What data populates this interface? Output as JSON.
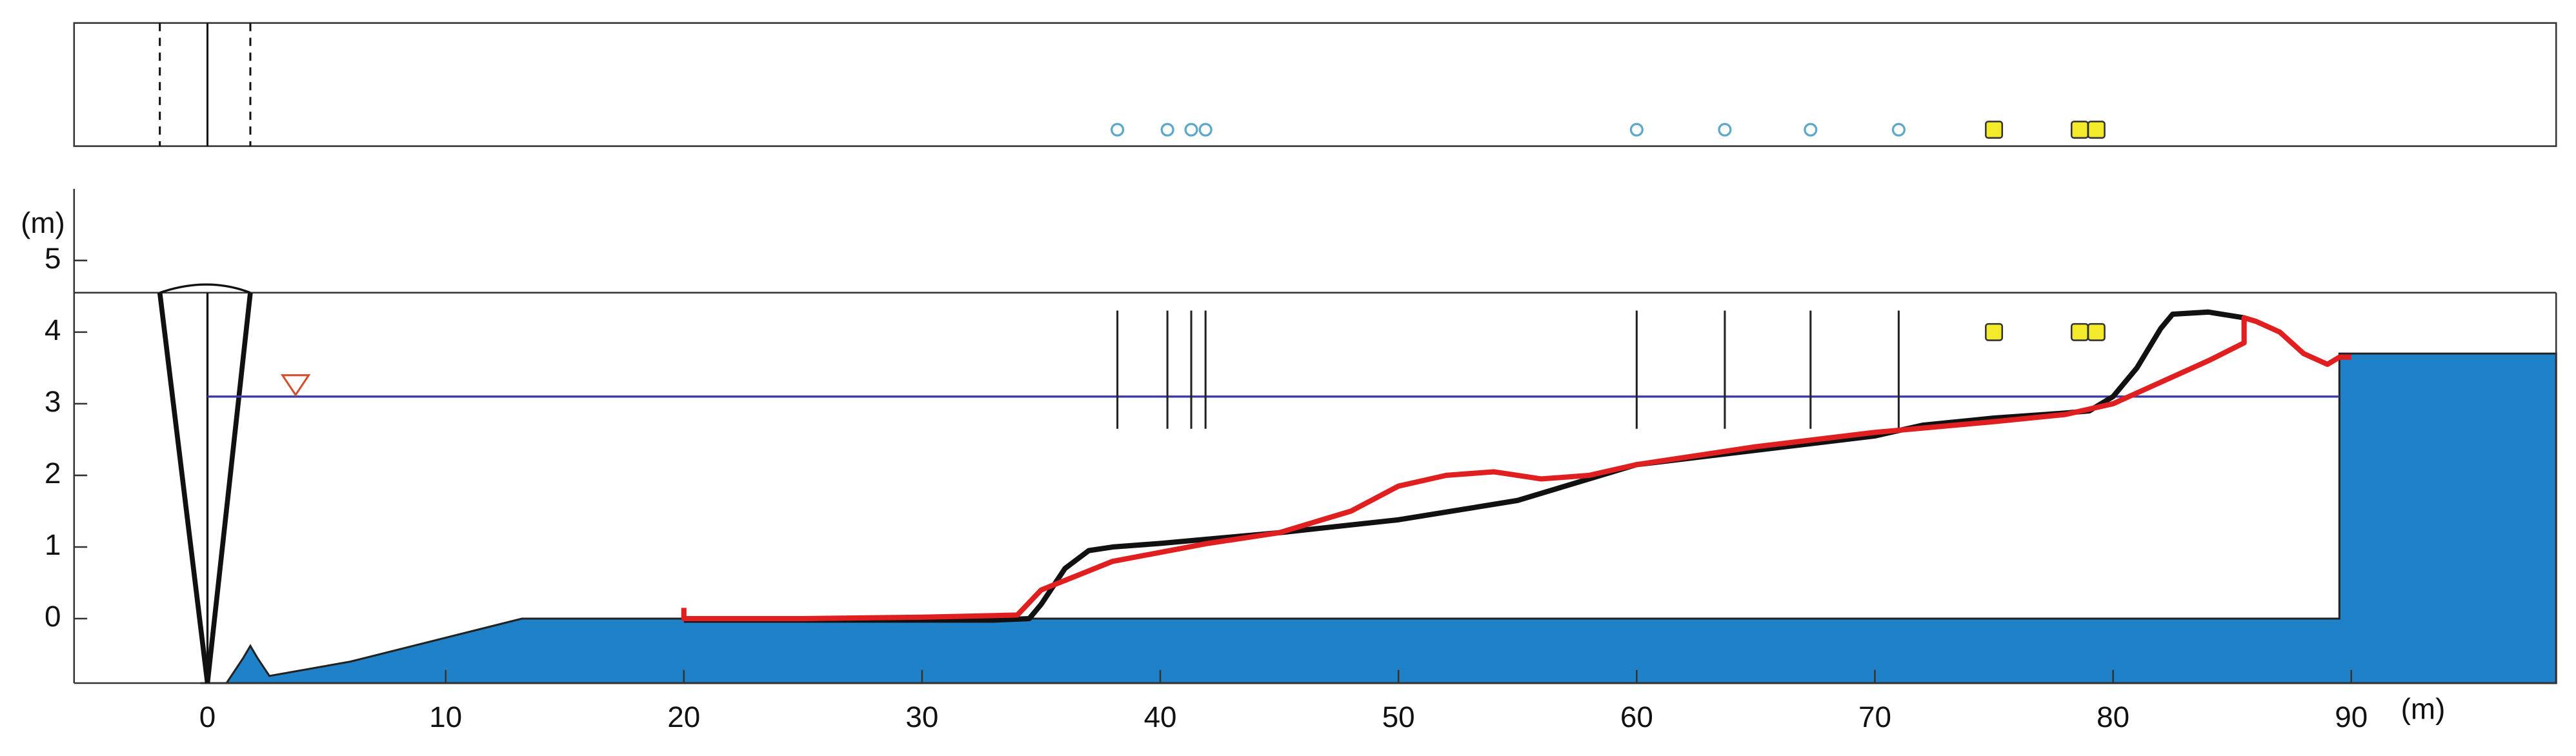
{
  "chart_data": {
    "type": "profile",
    "xlabel": "(m)",
    "ylabel": "(m)",
    "xlim": [
      -5.6,
      98.6
    ],
    "ylim": [
      -0.9,
      6.0
    ],
    "xticks": [
      0,
      10,
      20,
      30,
      40,
      50,
      60,
      70,
      80,
      90
    ],
    "yticks": [
      0,
      1,
      2,
      3,
      4,
      5
    ],
    "wall_top": 4.55,
    "still_water_level": 3.1,
    "still_water_x": [
      0,
      89.5
    ],
    "swl_marker_x": 3.7,
    "wavemaker_x": [
      -2,
      0,
      1.8
    ],
    "bathymetry": {
      "color": "#1f82c8",
      "x": [
        -0.3,
        0.8,
        1.5,
        1.8,
        2.1,
        2.6,
        6,
        13.2,
        89.5,
        89.5,
        98.6
      ],
      "values": [
        -0.9,
        -0.9,
        -0.55,
        -0.38,
        -0.55,
        -0.8,
        -0.6,
        0,
        0,
        3.7,
        3.7
      ]
    },
    "series": [
      {
        "color": "#111111",
        "x": [
          20,
          25,
          30,
          33,
          34.5,
          35,
          36,
          37,
          38,
          40,
          45,
          50,
          55,
          60,
          65,
          70,
          72,
          75,
          78,
          79,
          80,
          81,
          82,
          82.5,
          84,
          85.5
        ],
        "values": [
          -0.02,
          -0.02,
          -0.02,
          -0.02,
          0,
          0.2,
          0.7,
          0.95,
          1.0,
          1.05,
          1.2,
          1.38,
          1.65,
          2.15,
          2.35,
          2.55,
          2.7,
          2.8,
          2.87,
          2.9,
          3.1,
          3.5,
          4.05,
          4.25,
          4.28,
          4.2
        ]
      },
      {
        "color": "#e02020",
        "x": [
          20,
          20,
          25,
          30,
          34,
          35,
          38,
          42,
          45,
          48,
          50,
          52,
          54,
          56,
          58,
          60,
          65,
          70,
          75,
          78,
          80,
          82,
          84,
          85.5,
          85.5,
          86,
          87,
          88,
          89,
          89.5,
          90
        ],
        "values": [
          0.15,
          0,
          0,
          0.02,
          0.05,
          0.4,
          0.8,
          1.05,
          1.2,
          1.5,
          1.85,
          2.0,
          2.05,
          1.95,
          2.0,
          2.15,
          2.4,
          2.6,
          2.75,
          2.85,
          3.0,
          3.3,
          3.6,
          3.85,
          4.2,
          4.15,
          4.0,
          3.7,
          3.55,
          3.65,
          3.65
        ]
      }
    ],
    "gauges": {
      "x": [
        38.2,
        40.3,
        41.3,
        41.9,
        60,
        63.7,
        67.3,
        71
      ],
      "top": 4.3,
      "bottom": 2.65,
      "color": "#5fa8c8"
    },
    "sensors": {
      "x": [
        75,
        78.6,
        79.3
      ],
      "values": [
        4.0,
        4.0,
        4.0
      ],
      "color": "#f2ea2a"
    }
  }
}
